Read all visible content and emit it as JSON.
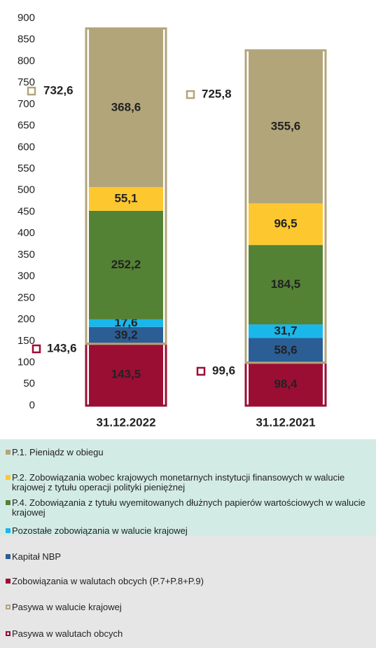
{
  "chart_data": {
    "type": "bar",
    "categories": [
      "31.12.2022",
      "31.12.2021"
    ],
    "ylim": [
      0,
      900
    ],
    "yticks": [
      0,
      50,
      100,
      150,
      200,
      250,
      300,
      350,
      400,
      450,
      500,
      550,
      600,
      650,
      700,
      750,
      800,
      850,
      900
    ],
    "grid": false,
    "series": [
      {
        "name": "Zobowiązania w walutach obcych (P.7+P.8+P.9)",
        "color": "#9b0e34",
        "values": [
          143.5,
          98.4
        ],
        "value_labels": [
          "143,5",
          "98,4"
        ]
      },
      {
        "name": "Kapitał NBP",
        "color": "#2b5e95",
        "values": [
          39.2,
          58.6
        ],
        "value_labels": [
          "39,2",
          "58,6"
        ]
      },
      {
        "name": "Pozostałe zobowiązania w walucie krajowej",
        "color": "#1ab7ea",
        "values": [
          17.6,
          31.7
        ],
        "value_labels": [
          "17,6",
          "31,7"
        ]
      },
      {
        "name": "P.4. Zobowiązania z tytułu wyemitowanych dłużnych papierów wartościowych w walucie krajowej",
        "color": "#548235",
        "values": [
          252.2,
          184.5
        ],
        "value_labels": [
          "252,2",
          "184,5"
        ]
      },
      {
        "name": "P.2. Zobowiązania wobec krajowych monetarnych instytucji finansowych w walucie krajowej z tytułu operacji polityki pieniężnej",
        "color": "#fdc82f",
        "values": [
          55.1,
          96.5
        ],
        "value_labels": [
          "55,1",
          "96,5"
        ]
      },
      {
        "name": "P.1. Pieniądz w obiegu",
        "color": "#b2a57a",
        "values": [
          368.6,
          355.6
        ],
        "value_labels": [
          "368,6",
          "355,6"
        ]
      }
    ],
    "outline_series": [
      {
        "name": "Pasywa w walutach obcych",
        "color": "#9b0e34",
        "values": [
          143.6,
          99.6
        ],
        "value_labels": [
          "143,6",
          "99,6"
        ]
      },
      {
        "name": "Pasywa w walucie krajowej",
        "color": "#b2a57a",
        "values": [
          732.6,
          725.8
        ],
        "value_labels": [
          "732,6",
          "725,8"
        ]
      }
    ]
  }
}
